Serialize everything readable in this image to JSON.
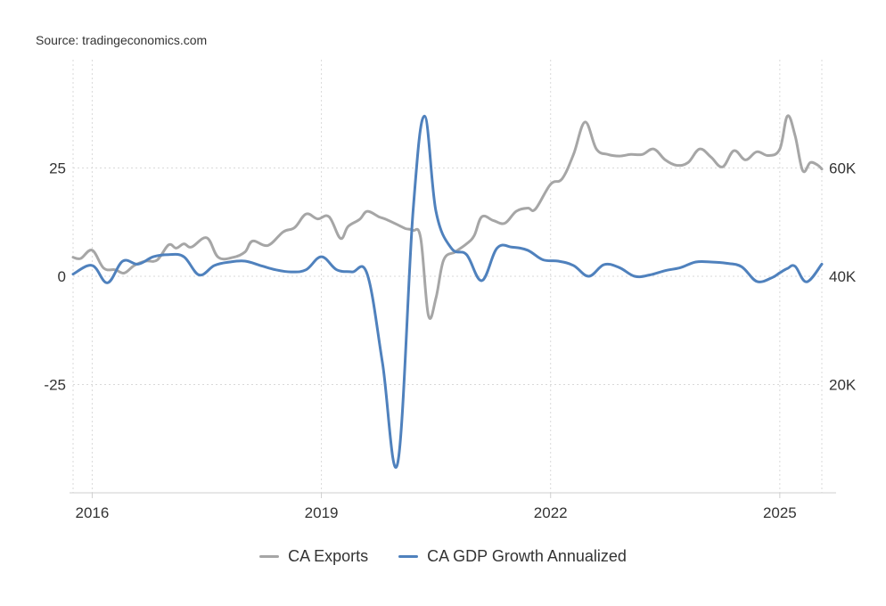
{
  "source": "Source: tradingeconomics.com",
  "chart_data": {
    "type": "line",
    "title": "",
    "x_range": [
      2015.75,
      2025.55
    ],
    "x_ticks": [
      {
        "value": 2016,
        "label": "2016"
      },
      {
        "value": 2019,
        "label": "2019"
      },
      {
        "value": 2022,
        "label": "2022"
      },
      {
        "value": 2025,
        "label": "2025"
      }
    ],
    "left_axis": {
      "range": [
        -50,
        50
      ],
      "ticks": [
        {
          "value": 25,
          "label": "25"
        },
        {
          "value": 0,
          "label": "0"
        },
        {
          "value": -25,
          "label": "-25"
        }
      ]
    },
    "right_axis": {
      "range": [
        0,
        80000
      ],
      "ticks": [
        {
          "value": 60000,
          "label": "60K"
        },
        {
          "value": 40000,
          "label": "40K"
        },
        {
          "value": 20000,
          "label": "20K"
        }
      ]
    },
    "grid": true,
    "legend_position": "bottom-center",
    "series": [
      {
        "name": "CA Exports",
        "axis": "right",
        "color": "#a6a6a6",
        "points": [
          [
            2015.75,
            43500
          ],
          [
            2015.85,
            43300
          ],
          [
            2016.0,
            44800
          ],
          [
            2016.15,
            41500
          ],
          [
            2016.3,
            41200
          ],
          [
            2016.42,
            40600
          ],
          [
            2016.55,
            42000
          ],
          [
            2016.7,
            42800
          ],
          [
            2016.85,
            43000
          ],
          [
            2017.0,
            45800
          ],
          [
            2017.1,
            45200
          ],
          [
            2017.2,
            46000
          ],
          [
            2017.3,
            45400
          ],
          [
            2017.5,
            47100
          ],
          [
            2017.65,
            43500
          ],
          [
            2017.85,
            43500
          ],
          [
            2018.0,
            44500
          ],
          [
            2018.1,
            46500
          ],
          [
            2018.3,
            45700
          ],
          [
            2018.5,
            48200
          ],
          [
            2018.65,
            49000
          ],
          [
            2018.8,
            51500
          ],
          [
            2018.95,
            50600
          ],
          [
            2019.1,
            51000
          ],
          [
            2019.25,
            47000
          ],
          [
            2019.35,
            49200
          ],
          [
            2019.5,
            50500
          ],
          [
            2019.6,
            52000
          ],
          [
            2019.75,
            51000
          ],
          [
            2019.85,
            50500
          ],
          [
            2020.0,
            49500
          ],
          [
            2020.1,
            48800
          ],
          [
            2020.2,
            48500
          ],
          [
            2020.3,
            47000
          ],
          [
            2020.4,
            32800
          ],
          [
            2020.5,
            36000
          ],
          [
            2020.6,
            43000
          ],
          [
            2020.75,
            44500
          ],
          [
            2020.9,
            46000
          ],
          [
            2021.0,
            47500
          ],
          [
            2021.1,
            51000
          ],
          [
            2021.25,
            50300
          ],
          [
            2021.4,
            49800
          ],
          [
            2021.55,
            52000
          ],
          [
            2021.7,
            52600
          ],
          [
            2021.8,
            52400
          ],
          [
            2022.0,
            57000
          ],
          [
            2022.15,
            58000
          ],
          [
            2022.3,
            62500
          ],
          [
            2022.45,
            68500
          ],
          [
            2022.6,
            63500
          ],
          [
            2022.75,
            62500
          ],
          [
            2022.9,
            62200
          ],
          [
            2023.05,
            62500
          ],
          [
            2023.2,
            62500
          ],
          [
            2023.35,
            63500
          ],
          [
            2023.5,
            61500
          ],
          [
            2023.65,
            60500
          ],
          [
            2023.8,
            61000
          ],
          [
            2023.95,
            63500
          ],
          [
            2024.1,
            62000
          ],
          [
            2024.25,
            60200
          ],
          [
            2024.4,
            63200
          ],
          [
            2024.55,
            61500
          ],
          [
            2024.7,
            63000
          ],
          [
            2024.85,
            62300
          ],
          [
            2025.0,
            63500
          ],
          [
            2025.1,
            69600
          ],
          [
            2025.2,
            66000
          ],
          [
            2025.3,
            59500
          ],
          [
            2025.4,
            61000
          ],
          [
            2025.5,
            60500
          ],
          [
            2025.55,
            59800
          ]
        ]
      },
      {
        "name": "CA GDP Growth Annualized",
        "axis": "left",
        "color": "#4f81bd",
        "points": [
          [
            2015.75,
            0.5
          ],
          [
            2016.0,
            2.5
          ],
          [
            2016.2,
            -1.5
          ],
          [
            2016.4,
            3.5
          ],
          [
            2016.6,
            2.8
          ],
          [
            2016.8,
            4.5
          ],
          [
            2017.0,
            5.0
          ],
          [
            2017.2,
            4.5
          ],
          [
            2017.4,
            0.3
          ],
          [
            2017.6,
            2.5
          ],
          [
            2017.8,
            3.3
          ],
          [
            2018.0,
            3.5
          ],
          [
            2018.2,
            2.5
          ],
          [
            2018.4,
            1.5
          ],
          [
            2018.6,
            1.0
          ],
          [
            2018.8,
            1.5
          ],
          [
            2019.0,
            4.5
          ],
          [
            2019.2,
            1.5
          ],
          [
            2019.4,
            1.0
          ],
          [
            2019.6,
            0.5
          ],
          [
            2019.8,
            -20.0
          ],
          [
            2020.0,
            -43.0
          ],
          [
            2020.2,
            15.0
          ],
          [
            2020.35,
            37.0
          ],
          [
            2020.5,
            15.0
          ],
          [
            2020.7,
            6.5
          ],
          [
            2020.9,
            5.0
          ],
          [
            2021.1,
            -1.0
          ],
          [
            2021.3,
            6.5
          ],
          [
            2021.5,
            6.7
          ],
          [
            2021.7,
            6.0
          ],
          [
            2021.9,
            3.8
          ],
          [
            2022.1,
            3.5
          ],
          [
            2022.3,
            2.5
          ],
          [
            2022.5,
            0.0
          ],
          [
            2022.7,
            2.7
          ],
          [
            2022.9,
            2.0
          ],
          [
            2023.1,
            0.0
          ],
          [
            2023.3,
            0.3
          ],
          [
            2023.5,
            1.3
          ],
          [
            2023.7,
            2.0
          ],
          [
            2023.9,
            3.3
          ],
          [
            2024.1,
            3.3
          ],
          [
            2024.3,
            3.0
          ],
          [
            2024.5,
            2.2
          ],
          [
            2024.7,
            -1.2
          ],
          [
            2024.9,
            -0.3
          ],
          [
            2025.0,
            0.8
          ],
          [
            2025.1,
            1.8
          ],
          [
            2025.2,
            2.3
          ],
          [
            2025.35,
            -1.3
          ],
          [
            2025.55,
            2.8
          ]
        ]
      }
    ]
  }
}
